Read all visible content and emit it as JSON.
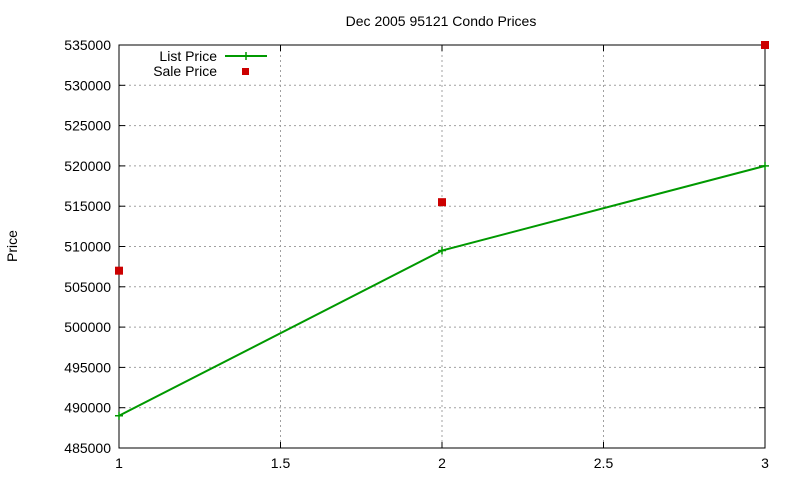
{
  "chart_data": {
    "type": "line",
    "title": "Dec 2005 95121 Condo Prices",
    "xlabel": "",
    "ylabel": "Price",
    "xlim": [
      1,
      3
    ],
    "ylim": [
      485000,
      535000
    ],
    "xticks": [
      1,
      1.5,
      2,
      2.5,
      3
    ],
    "xtick_labels": [
      "1",
      "1.5",
      "2",
      "2.5",
      "3"
    ],
    "yticks": [
      485000,
      490000,
      495000,
      500000,
      505000,
      510000,
      515000,
      520000,
      525000,
      530000,
      535000
    ],
    "ytick_labels": [
      "485000",
      "490000",
      "495000",
      "500000",
      "505000",
      "510000",
      "515000",
      "520000",
      "525000",
      "530000",
      "535000"
    ],
    "grid": true,
    "legend_position": "top-left",
    "series": [
      {
        "name": "List Price",
        "style": "linespoints",
        "marker": "plus",
        "color": "#009900",
        "x": [
          1,
          2,
          3
        ],
        "y": [
          489000,
          509500,
          520000
        ]
      },
      {
        "name": "Sale Price",
        "style": "points",
        "marker": "square",
        "color": "#cc0000",
        "x": [
          1,
          2,
          3
        ],
        "y": [
          507000,
          515500,
          535000
        ]
      }
    ]
  }
}
